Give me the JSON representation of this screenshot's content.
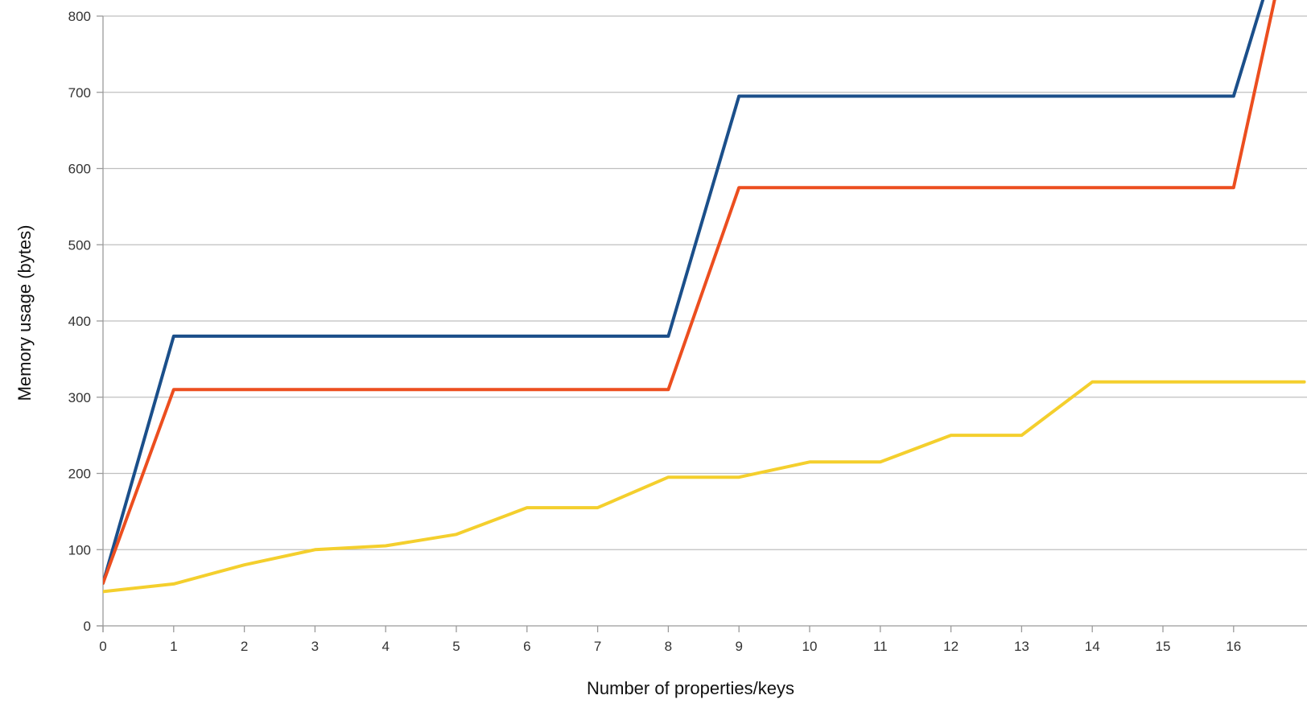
{
  "chart_data": {
    "type": "line",
    "title": "",
    "xlabel": "Number of properties/keys",
    "ylabel": "Memory usage (bytes)",
    "x": [
      0,
      1,
      2,
      3,
      4,
      5,
      6,
      7,
      8,
      9,
      10,
      11,
      12,
      13,
      14,
      15,
      16,
      17
    ],
    "xticks": [
      0,
      1,
      2,
      3,
      4,
      5,
      6,
      7,
      8,
      9,
      10,
      11,
      12,
      13,
      14,
      15,
      16
    ],
    "yticks": [
      0,
      100,
      200,
      300,
      400,
      500,
      600,
      700,
      800
    ],
    "xlim": [
      0,
      16.43
    ],
    "ylim": [
      0,
      800
    ],
    "grid": "horizontal",
    "legend": "none",
    "series": [
      {
        "color": "#1b4f8a",
        "values": [
          56,
          380,
          380,
          380,
          380,
          380,
          380,
          380,
          380,
          695,
          695,
          695,
          695,
          695,
          695,
          695,
          695,
          1000
        ]
      },
      {
        "color": "#ec4e1f",
        "values": [
          56,
          310,
          310,
          310,
          310,
          310,
          310,
          310,
          310,
          575,
          575,
          575,
          575,
          575,
          575,
          575,
          575,
          1000
        ]
      },
      {
        "color": "#f4cf2d",
        "values": [
          45,
          55,
          80,
          100,
          105,
          120,
          155,
          155,
          195,
          195,
          215,
          215,
          250,
          250,
          320,
          320,
          320,
          320
        ]
      }
    ]
  }
}
